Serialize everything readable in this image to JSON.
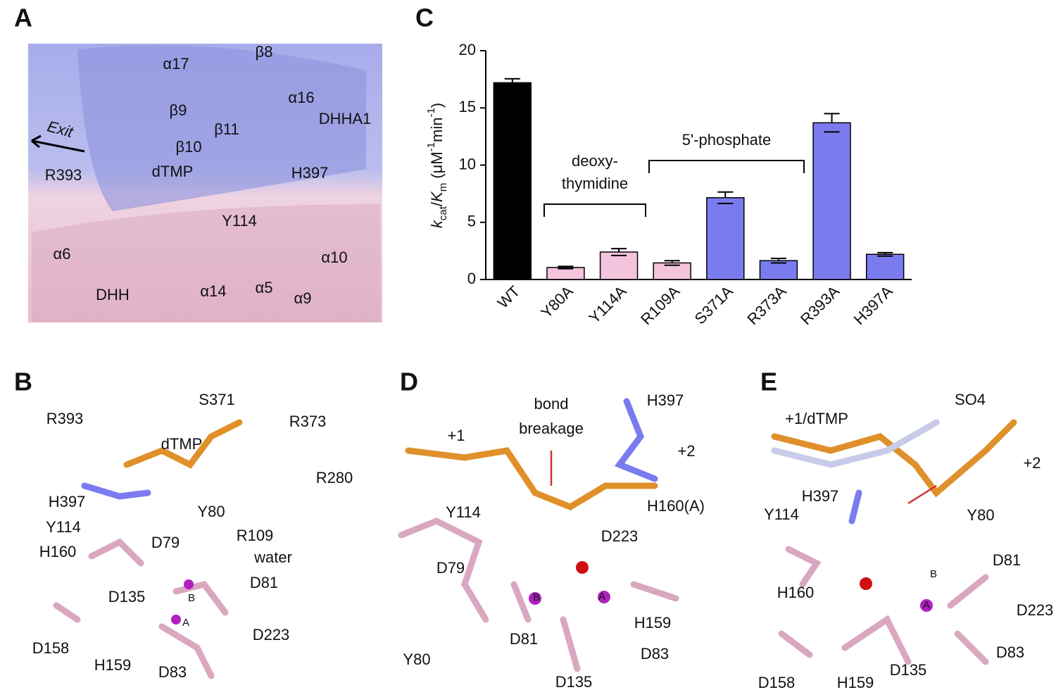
{
  "panel_letters": [
    "A",
    "B",
    "C",
    "D",
    "E"
  ],
  "panel_a": {
    "labels": [
      "α17",
      "β8",
      "α16",
      "DHHA1",
      "β9",
      "β11",
      "β10",
      "Exit",
      "R393",
      "dTMP",
      "H397",
      "Y114",
      "α6",
      "α10",
      "DHH",
      "α14",
      "α5",
      "α9"
    ]
  },
  "panel_b": {
    "labels": [
      "S371",
      "R393",
      "R373",
      "dTMP",
      "R280",
      "H397",
      "Y80",
      "Y114",
      "R109",
      "H160",
      "D79",
      "water",
      "D81",
      "D135",
      "B",
      "A",
      "D223",
      "D158",
      "H159",
      "D83"
    ]
  },
  "panel_d": {
    "labels": [
      "bond",
      "breakage",
      "H397",
      "+1",
      "+2",
      "Y114",
      "H160(A)",
      "D223",
      "D79",
      "D81",
      "H159",
      "D83",
      "Y80",
      "D135",
      "B",
      "A"
    ]
  },
  "panel_e": {
    "labels": [
      "SO4",
      "+1/dTMP",
      "+2",
      "H397",
      "Y114",
      "Y80",
      "D81",
      "H160",
      "D223",
      "B",
      "A",
      "D83",
      "D158",
      "H159",
      "D135"
    ]
  },
  "chart_data": {
    "type": "bar",
    "y_label_parts": [
      "k",
      "cat",
      "/",
      "K",
      "m",
      " (μM",
      "-1",
      "min",
      "-1",
      ")"
    ],
    "categories": [
      "WT",
      "Y80A",
      "Y114A",
      "R109A",
      "S371A",
      "R373A",
      "R393A",
      "H397A"
    ],
    "values": [
      17.2,
      1.05,
      2.4,
      1.45,
      7.15,
      1.65,
      13.7,
      2.2
    ],
    "errors": [
      0.35,
      0.1,
      0.3,
      0.2,
      0.5,
      0.2,
      0.8,
      0.15
    ],
    "colors": [
      "#000000",
      "#f4c3dc",
      "#f4c3dc",
      "#f4c3dc",
      "#7b7bf0",
      "#7b7bf0",
      "#7b7bf0",
      "#7b7bf0"
    ],
    "ylim": [
      0,
      20
    ],
    "yticks": [
      0,
      5,
      10,
      15,
      20
    ],
    "annotations": [
      "deoxy-",
      "thymidine",
      "5'-phosphate"
    ]
  }
}
